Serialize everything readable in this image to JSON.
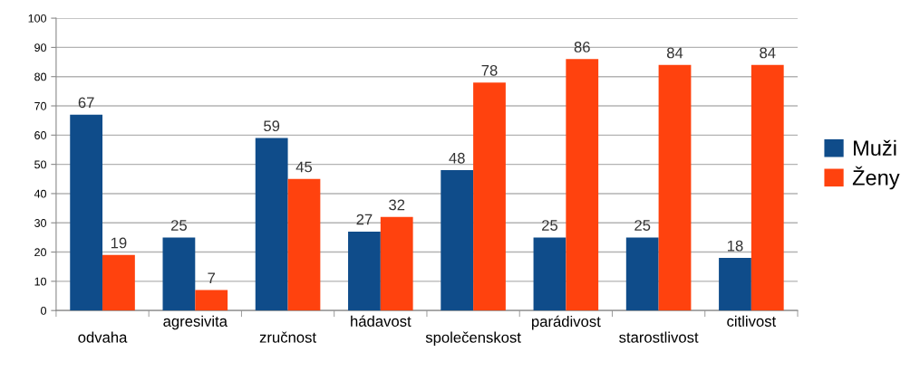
{
  "chart_data": {
    "type": "bar",
    "categories": [
      "odvaha",
      "agresivita",
      "zručnost",
      "hádavost",
      "společenskost",
      "parádivost",
      "starostlivost",
      "citlivost"
    ],
    "series": [
      {
        "name": "Muži",
        "color": "#0f4c8a",
        "values": [
          67,
          25,
          59,
          27,
          48,
          25,
          25,
          18
        ]
      },
      {
        "name": "Ženy",
        "color": "#ff420e",
        "values": [
          19,
          7,
          45,
          32,
          78,
          86,
          84,
          84
        ]
      }
    ],
    "ylim": [
      0,
      100
    ],
    "yticks": [
      0,
      10,
      20,
      30,
      40,
      50,
      60,
      70,
      80,
      90,
      100
    ],
    "grid": "y",
    "legend": "right",
    "data_labels": true
  }
}
